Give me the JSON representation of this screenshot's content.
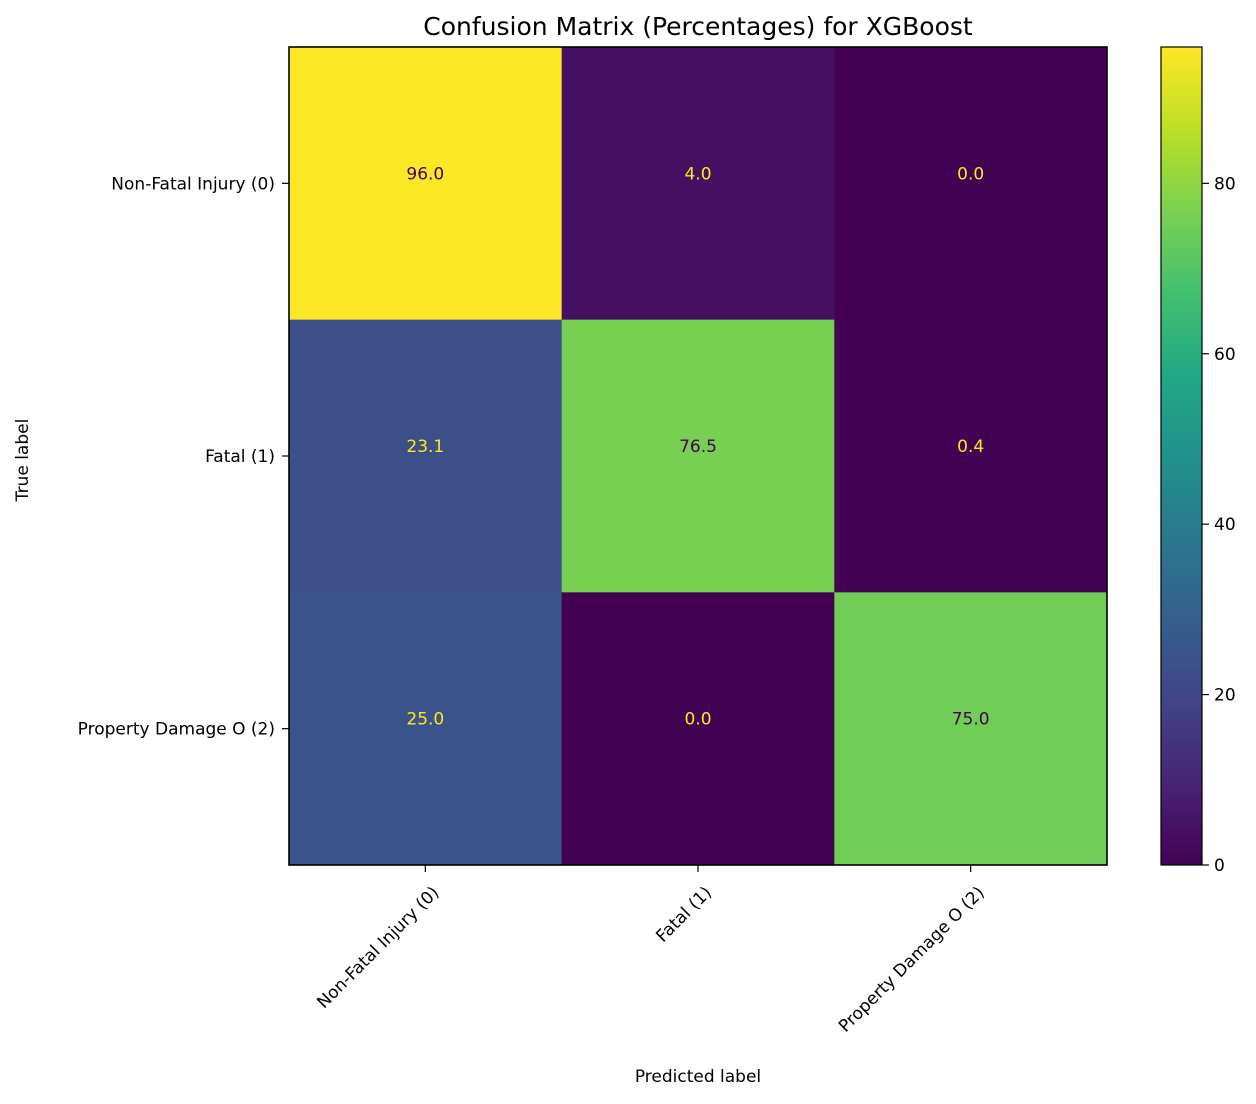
{
  "chart_data": {
    "type": "heatmap",
    "title": "Confusion Matrix (Percentages) for XGBoost",
    "xlabel": "Predicted label",
    "ylabel": "True label",
    "x_categories": [
      "Non-Fatal Injury (0)",
      "Fatal (1)",
      "Property Damage O (2)"
    ],
    "y_categories": [
      "Non-Fatal Injury (0)",
      "Fatal (1)",
      "Property Damage O (2)"
    ],
    "values": [
      [
        96.0,
        4.0,
        0.0
      ],
      [
        23.1,
        76.5,
        0.4
      ],
      [
        25.0,
        0.0,
        75.0
      ]
    ],
    "value_format": "0.1f",
    "colormap": "viridis",
    "colorbar": {
      "min": 0,
      "max": 96.0,
      "ticks": [
        0,
        20,
        40,
        60,
        80
      ]
    },
    "colors": {
      "text_on_dark": "#fde725",
      "text_on_light": "#440154"
    }
  }
}
